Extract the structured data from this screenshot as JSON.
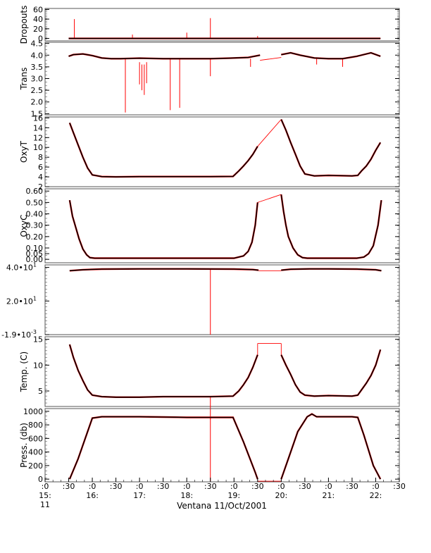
{
  "chart_data": {
    "type": "line",
    "title": "",
    "xlabel": "Ventana 11/Oct/2001",
    "x_unit": "hours (decimal, 11/Oct/2001)",
    "xlim": [
      15.0,
      22.5
    ],
    "x_ticks": [
      {
        "value": 15.0,
        "lines": [
          ":0",
          "15:",
          "11"
        ]
      },
      {
        "value": 15.5,
        "lines": [
          ":30"
        ]
      },
      {
        "value": 16.0,
        "lines": [
          ":0",
          "16:"
        ]
      },
      {
        "value": 16.5,
        "lines": [
          ":30"
        ]
      },
      {
        "value": 17.0,
        "lines": [
          ":0",
          "17:"
        ]
      },
      {
        "value": 17.5,
        "lines": [
          ":30"
        ]
      },
      {
        "value": 18.0,
        "lines": [
          ":0",
          "18:"
        ]
      },
      {
        "value": 18.5,
        "lines": [
          ":30"
        ]
      },
      {
        "value": 19.0,
        "lines": [
          ":0",
          "19:"
        ]
      },
      {
        "value": 19.5,
        "lines": [
          ":30"
        ]
      },
      {
        "value": 20.0,
        "lines": [
          ":0",
          "20:"
        ]
      },
      {
        "value": 20.5,
        "lines": [
          ":30"
        ]
      },
      {
        "value": 21.0,
        "lines": [
          ":0",
          "21:"
        ]
      },
      {
        "value": 21.5,
        "lines": [
          ":30"
        ]
      },
      {
        "value": 22.0,
        "lines": [
          ":0",
          "22:"
        ]
      },
      {
        "value": 22.5,
        "lines": [
          ":30"
        ]
      }
    ],
    "colors": {
      "series": "#000000",
      "raw": "#ff0000",
      "frame": "#555555"
    },
    "panels": [
      {
        "name": "dropouts",
        "ylabel": "Dropouts",
        "ylim": [
          -5,
          62
        ],
        "yticks": [
          {
            "v": 60,
            "t": "60"
          },
          {
            "v": 40,
            "t": "40"
          },
          {
            "v": 20,
            "t": "20"
          },
          {
            "v": 0,
            "t": "0"
          }
        ],
        "series": {
          "x": [
            15.5,
            22.1
          ],
          "y": [
            0,
            0
          ]
        },
        "raw": [
          [
            [
              15.5,
              0
            ],
            [
              22.1,
              0
            ]
          ]
        ],
        "spikes": [
          [
            15.62,
            0,
            40
          ],
          [
            16.85,
            0,
            8
          ],
          [
            18.0,
            0,
            12
          ],
          [
            18.5,
            0,
            42
          ],
          [
            19.5,
            0,
            5
          ]
        ]
      },
      {
        "name": "trans",
        "ylabel": "Trans",
        "ylim": [
          1.45,
          4.55
        ],
        "yticks": [
          {
            "v": 4.5,
            "t": "4.5"
          },
          {
            "v": 4.0,
            "t": "4.0"
          },
          {
            "v": 3.5,
            "t": "3.5"
          },
          {
            "v": 3.0,
            "t": "3.0"
          },
          {
            "v": 2.5,
            "t": "2.5"
          },
          {
            "v": 2.0,
            "t": "2.0"
          },
          {
            "v": 1.5,
            "t": "1.5"
          }
        ],
        "series": [
          {
            "x": [
              15.5,
              15.6,
              15.8,
              16.0,
              16.2,
              16.4,
              16.6,
              17.0,
              17.5,
              18.0,
              18.5,
              18.9,
              19.3,
              19.55
            ],
            "y": [
              3.95,
              4.02,
              4.05,
              3.98,
              3.88,
              3.85,
              3.85,
              3.87,
              3.85,
              3.85,
              3.85,
              3.87,
              3.9,
              4.0
            ]
          },
          {
            "x": [
              20.0,
              20.2,
              20.4,
              20.7,
              21.0,
              21.3,
              21.6,
              21.9,
              22.1
            ],
            "y": [
              4.02,
              4.1,
              4.0,
              3.88,
              3.85,
              3.85,
              3.95,
              4.1,
              3.95
            ]
          }
        ],
        "raw": [
          [
            [
              19.55,
              3.78
            ],
            [
              20.0,
              3.9
            ]
          ]
        ],
        "spikes": [
          [
            16.7,
            3.85,
            1.55
          ],
          [
            17.0,
            3.7,
            2.75
          ],
          [
            17.05,
            3.6,
            2.5
          ],
          [
            17.1,
            3.6,
            2.3
          ],
          [
            17.15,
            3.7,
            2.8
          ],
          [
            17.65,
            3.85,
            1.65
          ],
          [
            17.85,
            3.85,
            1.75
          ],
          [
            18.5,
            3.85,
            3.1
          ],
          [
            19.35,
            3.85,
            3.5
          ],
          [
            20.75,
            3.85,
            3.6
          ],
          [
            21.3,
            3.85,
            3.5
          ]
        ]
      },
      {
        "name": "oxyt",
        "ylabel": "OxyT",
        "ylim": [
          2,
          16.2
        ],
        "yticks": [
          {
            "v": 16,
            "t": "16"
          },
          {
            "v": 14,
            "t": "14"
          },
          {
            "v": 12,
            "t": "12"
          },
          {
            "v": 10,
            "t": "10"
          },
          {
            "v": 8,
            "t": "8"
          },
          {
            "v": 6,
            "t": "6"
          },
          {
            "v": 4,
            "t": "4"
          },
          {
            "v": 2,
            "t": "2"
          }
        ],
        "series": [
          {
            "x": [
              15.52,
              15.6,
              15.7,
              15.8,
              15.9,
              16.0,
              16.2,
              16.5,
              17.0,
              17.5,
              18.0,
              18.5,
              18.98,
              19.1,
              19.2,
              19.3,
              19.4,
              19.5
            ],
            "y": [
              15.0,
              13.0,
              10.5,
              8.0,
              5.8,
              4.4,
              4.05,
              4.0,
              4.05,
              4.05,
              4.05,
              4.05,
              4.1,
              5.2,
              6.2,
              7.3,
              8.6,
              10.2
            ]
          },
          {
            "x": [
              20.0,
              20.1,
              20.2,
              20.3,
              20.4,
              20.5,
              20.7,
              21.0,
              21.5,
              21.62,
              21.7,
              21.8,
              21.9,
              22.0,
              22.1
            ],
            "y": [
              15.7,
              13.5,
              11.0,
              8.6,
              6.2,
              4.6,
              4.2,
              4.3,
              4.2,
              4.3,
              5.2,
              6.2,
              7.6,
              9.4,
              11.0
            ]
          }
        ],
        "raw": [
          [
            [
              19.5,
              10.2
            ],
            [
              20.0,
              15.7
            ]
          ]
        ],
        "spikes": []
      },
      {
        "name": "oxyc",
        "ylabel": "OxyC",
        "ylim": [
          -0.03,
          0.62
        ],
        "yticks": [
          {
            "v": 0.6,
            "t": "0.60"
          },
          {
            "v": 0.5,
            "t": "0.50"
          },
          {
            "v": 0.4,
            "t": "0.40"
          },
          {
            "v": 0.3,
            "t": "0.30"
          },
          {
            "v": 0.2,
            "t": "0.20"
          },
          {
            "v": 0.1,
            "t": "0.10"
          },
          {
            "v": 0.05,
            "t": "0.05"
          },
          {
            "v": 0.0,
            "t": "0.00"
          }
        ],
        "series": [
          {
            "x": [
              15.52,
              15.58,
              15.65,
              15.72,
              15.8,
              15.88,
              15.95,
              16.05,
              16.5,
              17.0,
              17.5,
              18.0,
              18.5,
              19.0,
              19.2,
              19.3,
              19.38,
              19.45,
              19.5
            ],
            "y": [
              0.52,
              0.38,
              0.28,
              0.18,
              0.09,
              0.04,
              0.015,
              0.01,
              0.01,
              0.01,
              0.01,
              0.01,
              0.01,
              0.01,
              0.03,
              0.07,
              0.15,
              0.3,
              0.5
            ]
          },
          {
            "x": [
              20.0,
              20.05,
              20.1,
              20.15,
              20.25,
              20.35,
              20.45,
              20.55,
              20.8,
              21.2,
              21.6,
              21.75,
              21.85,
              21.95,
              22.05,
              22.12
            ],
            "y": [
              0.57,
              0.42,
              0.3,
              0.2,
              0.1,
              0.04,
              0.015,
              0.01,
              0.01,
              0.01,
              0.01,
              0.02,
              0.05,
              0.12,
              0.3,
              0.52
            ]
          }
        ],
        "raw": [
          [
            [
              19.5,
              0.5
            ],
            [
              20.0,
              0.57
            ]
          ]
        ],
        "spikes": []
      },
      {
        "name": "blank",
        "ylabel": "",
        "ylim": [
          -0.002,
          41.5
        ],
        "yticks": [
          {
            "v": 40,
            "t": "4.0•10",
            "sup": "1"
          },
          {
            "v": 20,
            "t": "2.0•10",
            "sup": "1"
          },
          {
            "v": -0.0019,
            "t": "-1.9•10",
            "sup": "-3"
          }
        ],
        "series": [
          {
            "x": [
              15.52,
              15.8,
              16.2,
              17.0,
              18.0,
              19.0,
              19.4,
              19.52
            ],
            "y": [
              38.0,
              38.6,
              39.0,
              39.1,
              39.1,
              39.0,
              38.7,
              38.3
            ]
          },
          {
            "x": [
              20.0,
              20.2,
              20.6,
              21.0,
              21.6,
              22.0,
              22.12
            ],
            "y": [
              38.3,
              38.9,
              39.1,
              39.1,
              39.0,
              38.6,
              38.0
            ]
          }
        ],
        "raw": [
          [
            [
              19.52,
              38.0
            ],
            [
              20.0,
              38.0
            ]
          ]
        ],
        "spikes": [
          [
            18.5,
            38.9,
            -0.0019
          ]
        ]
      },
      {
        "name": "temp",
        "ylabel": "Temp. (C)",
        "ylim": [
          2,
          15.5
        ],
        "yticks": [
          {
            "v": 15,
            "t": "15"
          },
          {
            "v": 10,
            "t": "10"
          },
          {
            "v": 5,
            "t": "5"
          }
        ],
        "series": [
          {
            "x": [
              15.52,
              15.6,
              15.7,
              15.8,
              15.9,
              16.0,
              16.2,
              16.5,
              17.0,
              17.5,
              18.0,
              18.5,
              18.98,
              19.1,
              19.2,
              19.3,
              19.4,
              19.5
            ],
            "y": [
              14.0,
              11.5,
              9.0,
              7.0,
              5.2,
              4.2,
              3.9,
              3.8,
              3.8,
              3.9,
              3.9,
              3.9,
              4.0,
              5.0,
              6.2,
              7.6,
              9.6,
              12.0
            ]
          },
          {
            "x": [
              20.0,
              20.1,
              20.2,
              20.3,
              20.4,
              20.5,
              20.7,
              21.0,
              21.5,
              21.62,
              21.7,
              21.8,
              21.9,
              22.0,
              22.1
            ],
            "y": [
              12.0,
              10.0,
              8.2,
              6.2,
              4.8,
              4.2,
              4.0,
              4.1,
              4.0,
              4.2,
              5.2,
              6.5,
              8.0,
              10.0,
              13.0
            ]
          }
        ],
        "raw": [
          [
            [
              19.5,
              14.2
            ],
            [
              20.0,
              14.2
            ]
          ],
          [
            [
              19.5,
              12.0
            ],
            [
              19.5,
              14.2
            ]
          ],
          [
            [
              20.0,
              14.2
            ],
            [
              20.0,
              12.0
            ]
          ]
        ],
        "spikes": [
          [
            18.5,
            3.9,
            -0.5
          ]
        ]
      },
      {
        "name": "press",
        "ylabel": "Press. (db)",
        "ylim": [
          -40,
          1040
        ],
        "yticks": [
          {
            "v": 1000,
            "t": "1000"
          },
          {
            "v": 800,
            "t": "800"
          },
          {
            "v": 600,
            "t": "600"
          },
          {
            "v": 400,
            "t": "400"
          },
          {
            "v": 200,
            "t": "200"
          },
          {
            "v": 0,
            "t": "0"
          }
        ],
        "series": [
          {
            "x": [
              15.52,
              15.7,
              15.9,
              16.0,
              16.2,
              16.5,
              17.0,
              17.5,
              18.0,
              18.5,
              18.98,
              19.2,
              19.45,
              19.5
            ],
            "y": [
              0,
              300,
              700,
              900,
              920,
              920,
              920,
              915,
              910,
              910,
              910,
              550,
              100,
              0
            ]
          },
          {
            "x": [
              20.0,
              20.15,
              20.35,
              20.55,
              20.65,
              20.75,
              21.0,
              21.5,
              21.62,
              21.75,
              21.95,
              22.1
            ],
            "y": [
              0,
              300,
              700,
              920,
              960,
              920,
              920,
              920,
              910,
              650,
              200,
              0
            ]
          }
        ],
        "raw": [
          [
            [
              19.5,
              -30
            ],
            [
              20.0,
              -30
            ]
          ]
        ],
        "spikes": [
          [
            18.5,
            910,
            -30
          ]
        ]
      }
    ]
  }
}
